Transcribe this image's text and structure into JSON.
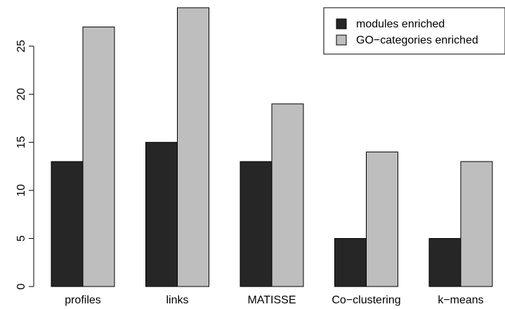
{
  "chart_data": {
    "type": "bar",
    "categories": [
      "profiles",
      "links",
      "MATISSE",
      "Co−clustering",
      "k−means"
    ],
    "series": [
      {
        "name": "modules enriched",
        "values": [
          13,
          15,
          13,
          5,
          5
        ],
        "color": "#262626"
      },
      {
        "name": "GO−categories enriched",
        "values": [
          27,
          29,
          19,
          14,
          13
        ],
        "color": "#bebebe"
      }
    ],
    "y_ticks": [
      "0",
      "5",
      "10",
      "15",
      "20",
      "25"
    ],
    "ylim": [
      0,
      29
    ],
    "legend_position": "top-right",
    "grid": false
  }
}
